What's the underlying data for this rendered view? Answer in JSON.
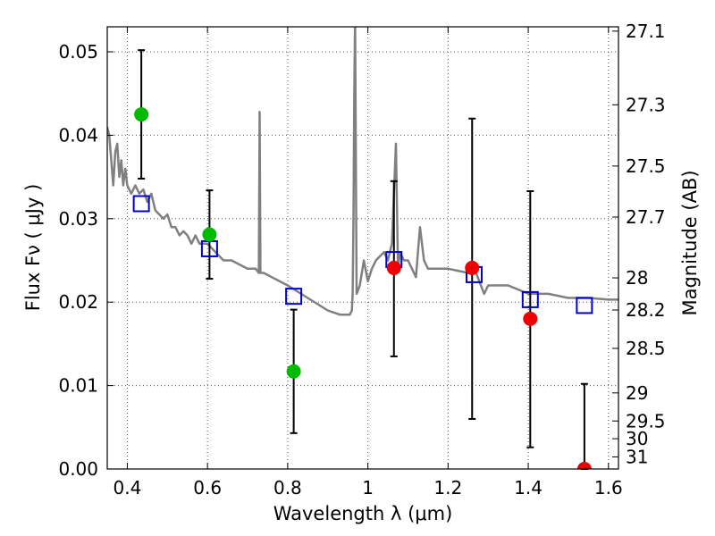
{
  "chart_data": {
    "type": "scatter",
    "xlabel": "Wavelength  λ (μm)",
    "ylabel": "Flux  Fν  ( μJy )",
    "ylabel_right": "Magnitude (AB)",
    "xlim": [
      0.35,
      1.625
    ],
    "ylim": [
      0.0,
      0.053
    ],
    "grid": true,
    "x_ticks": [
      0.4,
      0.6,
      0.8,
      1.0,
      1.2,
      1.4,
      1.6
    ],
    "x_tick_labels": [
      "0.4",
      "0.6",
      "0.8",
      "1",
      "1.2",
      "1.4",
      "1.6"
    ],
    "y_ticks": [
      0.0,
      0.01,
      0.02,
      0.03,
      0.04,
      0.05
    ],
    "y_tick_labels": [
      "0.00",
      "0.01",
      "0.02",
      "0.03",
      "0.04",
      "0.05"
    ],
    "mag_ticks": [
      27.1,
      27.3,
      27.5,
      27.7,
      28,
      28.2,
      28.5,
      29,
      29.5,
      30,
      31
    ],
    "mag_tick_labels": [
      "27.1",
      "27.3",
      "27.5",
      "27.7",
      "28",
      "28.2",
      "28.5",
      "29",
      "29.5",
      "30",
      "31"
    ],
    "series": [
      {
        "color": "#808080",
        "style": "line",
        "x": [
          0.35,
          0.355,
          0.36,
          0.365,
          0.37,
          0.375,
          0.38,
          0.385,
          0.39,
          0.395,
          0.4,
          0.41,
          0.42,
          0.43,
          0.44,
          0.45,
          0.46,
          0.47,
          0.48,
          0.49,
          0.5,
          0.51,
          0.52,
          0.53,
          0.54,
          0.55,
          0.56,
          0.57,
          0.58,
          0.6,
          0.62,
          0.64,
          0.66,
          0.68,
          0.7,
          0.72,
          0.728,
          0.73,
          0.732,
          0.74,
          0.76,
          0.8,
          0.85,
          0.9,
          0.93,
          0.955,
          0.96,
          0.962,
          0.964,
          0.966,
          0.968,
          0.972,
          0.98,
          0.99,
          1.0,
          1.01,
          1.02,
          1.04,
          1.05,
          1.06,
          1.07,
          1.075,
          1.08,
          1.09,
          1.1,
          1.12,
          1.13,
          1.14,
          1.15,
          1.2,
          1.25,
          1.27,
          1.29,
          1.3,
          1.35,
          1.4,
          1.45,
          1.5,
          1.55,
          1.6,
          1.625
        ],
        "values": [
          0.041,
          0.04,
          0.037,
          0.034,
          0.038,
          0.039,
          0.035,
          0.037,
          0.034,
          0.036,
          0.034,
          0.033,
          0.034,
          0.033,
          0.0335,
          0.032,
          0.033,
          0.031,
          0.0305,
          0.03,
          0.0305,
          0.029,
          0.029,
          0.028,
          0.0285,
          0.028,
          0.027,
          0.028,
          0.027,
          0.027,
          0.026,
          0.025,
          0.025,
          0.0245,
          0.024,
          0.024,
          0.0235,
          0.0428,
          0.0235,
          0.0235,
          0.023,
          0.022,
          0.0205,
          0.019,
          0.0185,
          0.0185,
          0.019,
          0.021,
          0.03,
          0.045,
          0.054,
          0.021,
          0.022,
          0.025,
          0.0225,
          0.024,
          0.025,
          0.026,
          0.025,
          0.027,
          0.039,
          0.024,
          0.026,
          0.025,
          0.025,
          0.023,
          0.029,
          0.025,
          0.024,
          0.024,
          0.0235,
          0.0235,
          0.021,
          0.022,
          0.022,
          0.021,
          0.021,
          0.0205,
          0.0205,
          0.0203,
          0.0203
        ]
      },
      {
        "color": "#0000cc",
        "style": "open-square",
        "x": [
          0.435,
          0.605,
          0.815,
          1.065,
          1.265,
          1.405,
          1.54
        ],
        "values": [
          0.0318,
          0.0264,
          0.0207,
          0.0251,
          0.0233,
          0.0203,
          0.0196
        ]
      },
      {
        "color": "#00bb00",
        "style": "filled-circle",
        "x": [
          0.435,
          0.605,
          0.815
        ],
        "values": [
          0.0425,
          0.0281,
          0.0117
        ]
      },
      {
        "color": "#ee0000",
        "style": "filled-circle",
        "x": [
          1.065,
          1.26,
          1.405,
          1.54
        ],
        "values": [
          0.0241,
          0.0241,
          0.018,
          0.0
        ]
      }
    ],
    "error_bars": [
      {
        "x": 0.435,
        "low": 0.0348,
        "high": 0.0502
      },
      {
        "x": 0.605,
        "low": 0.0228,
        "high": 0.0334
      },
      {
        "x": 0.815,
        "low": 0.0043,
        "high": 0.0191
      },
      {
        "x": 1.065,
        "low": 0.0135,
        "high": 0.0345
      },
      {
        "x": 1.26,
        "low": 0.006,
        "high": 0.042
      },
      {
        "x": 1.405,
        "low": 0.0026,
        "high": 0.0333
      },
      {
        "x": 1.54,
        "low": 0.0,
        "high": 0.0102
      }
    ]
  }
}
